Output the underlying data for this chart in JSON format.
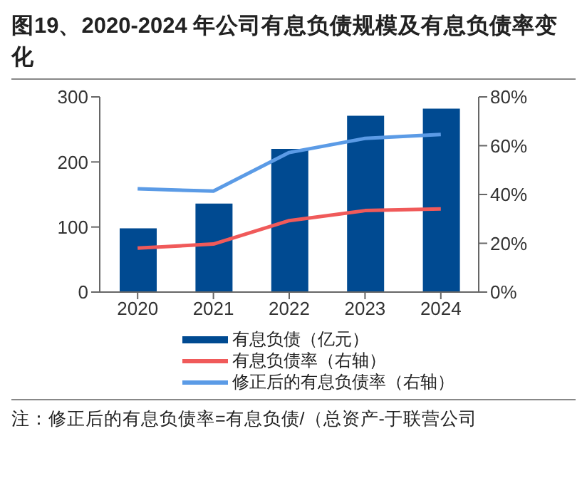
{
  "chart_data": {
    "type": "bar",
    "title": "图19、2020-2024 年公司有息负债规模及有息负债率变化",
    "categories": [
      "2020",
      "2021",
      "2022",
      "2023",
      "2024"
    ],
    "series": [
      {
        "name": "有息负债（亿元）",
        "color": "#004a91",
        "values": [
          98,
          136,
          220,
          271,
          282
        ]
      },
      {
        "name": "有息负债率（右轴）",
        "type": "line",
        "axis": "y2",
        "color": "#f05a5a",
        "values": [
          18,
          19.7,
          29.3,
          33.4,
          34.1
        ]
      },
      {
        "name": "修正后的有息负债率（右轴）",
        "type": "line",
        "axis": "y2",
        "color": "#5b9be6",
        "values": [
          42.3,
          41.4,
          57.2,
          63,
          64.6
        ]
      }
    ],
    "ylim": [
      0,
      300
    ],
    "yticks": [
      0,
      100,
      200,
      300
    ],
    "y2lim": [
      0,
      80
    ],
    "y2ticks": [
      {
        "value": 0,
        "label": "0%"
      },
      {
        "value": 20,
        "label": "20%"
      },
      {
        "value": 40,
        "label": "40%"
      },
      {
        "value": 60,
        "label": "60%"
      },
      {
        "value": 80,
        "label": "80%"
      }
    ],
    "grid": false,
    "legend": "bottom",
    "marker": "none",
    "line_style": "solid",
    "annotations": [
      "注：修正后的有息负债率=有息负债/（总资产-于联营公司"
    ]
  }
}
